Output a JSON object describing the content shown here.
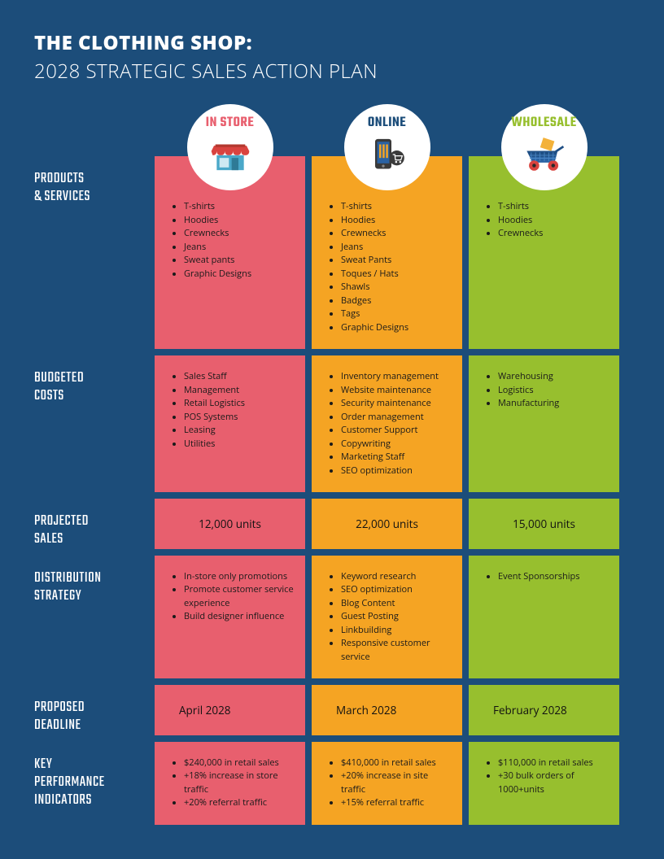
{
  "title_line1": "THE CLOTHING SHOP:",
  "title_line2": "2028 STRATEGIC SALES ACTION PLAN",
  "colors": {
    "page_bg": "#1c4d7a",
    "col1": "#e85f6e",
    "col2": "#f5a423",
    "col3": "#97bf2e",
    "circle_bg": "#ffffff",
    "label_in_store": "#e85f6e",
    "label_online": "#1c4d7a",
    "label_wholesale": "#97bf2e"
  },
  "columns": {
    "in_store": {
      "label": "IN STORE",
      "icon": "store-icon"
    },
    "online": {
      "label": "ONLINE",
      "icon": "phone-cart-icon"
    },
    "wholesale": {
      "label": "WHOLESALE",
      "icon": "wheelbarrow-icon"
    }
  },
  "rows": {
    "products": {
      "label": "PRODUCTS & SERVICES",
      "in_store": [
        "T-shirts",
        "Hoodies",
        "Crewnecks",
        "Jeans",
        "Sweat pants",
        "Graphic Designs"
      ],
      "online": [
        "T-shirts",
        "Hoodies",
        "Crewnecks",
        "Jeans",
        "Sweat Pants",
        "Toques / Hats",
        "Shawls",
        "Badges",
        "Tags",
        "Graphic Designs"
      ],
      "wholesale": [
        "T-shirts",
        "Hoodies",
        "Crewnecks"
      ]
    },
    "costs": {
      "label": "BUDGETED COSTS",
      "in_store": [
        "Sales Staff",
        "Management",
        "Retail Logistics",
        "POS Systems",
        "Leasing",
        "Utilities"
      ],
      "online": [
        "Inventory management",
        "Website maintenance",
        "Security maintenance",
        "Order management",
        "Customer Support",
        "Copywriting",
        "Marketing Staff",
        "SEO optimization"
      ],
      "wholesale": [
        "Warehousing",
        "Logistics",
        "Manufacturing"
      ]
    },
    "projected": {
      "label": "PROJECTED SALES",
      "in_store": "12,000 units",
      "online": "22,000 units",
      "wholesale": "15,000 units"
    },
    "distribution": {
      "label": "DISTRIBUTION STRATEGY",
      "in_store": [
        "In-store only promotions",
        "Promote customer service experience",
        "Build designer influence"
      ],
      "online": [
        "Keyword research",
        "SEO optimization",
        "Blog Content",
        "Guest Posting",
        "Linkbuilding",
        "Responsive customer service"
      ],
      "wholesale": [
        "Event Sponsorships"
      ]
    },
    "deadline": {
      "label": "PROPOSED DEADLINE",
      "in_store": "April 2028",
      "online": "March 2028",
      "wholesale": "February 2028"
    },
    "kpi": {
      "label": "KEY PERFORMANCE INDICATORS",
      "in_store": [
        "$240,000 in retail sales",
        "+18% increase in store traffic",
        "+20% referral traffic"
      ],
      "online": [
        "$410,000 in retail sales",
        "+20% increase in site traffic",
        "+15% referral traffic"
      ],
      "wholesale": [
        "$110,000 in retail sales",
        "+30 bulk orders of 1000+units"
      ]
    }
  }
}
